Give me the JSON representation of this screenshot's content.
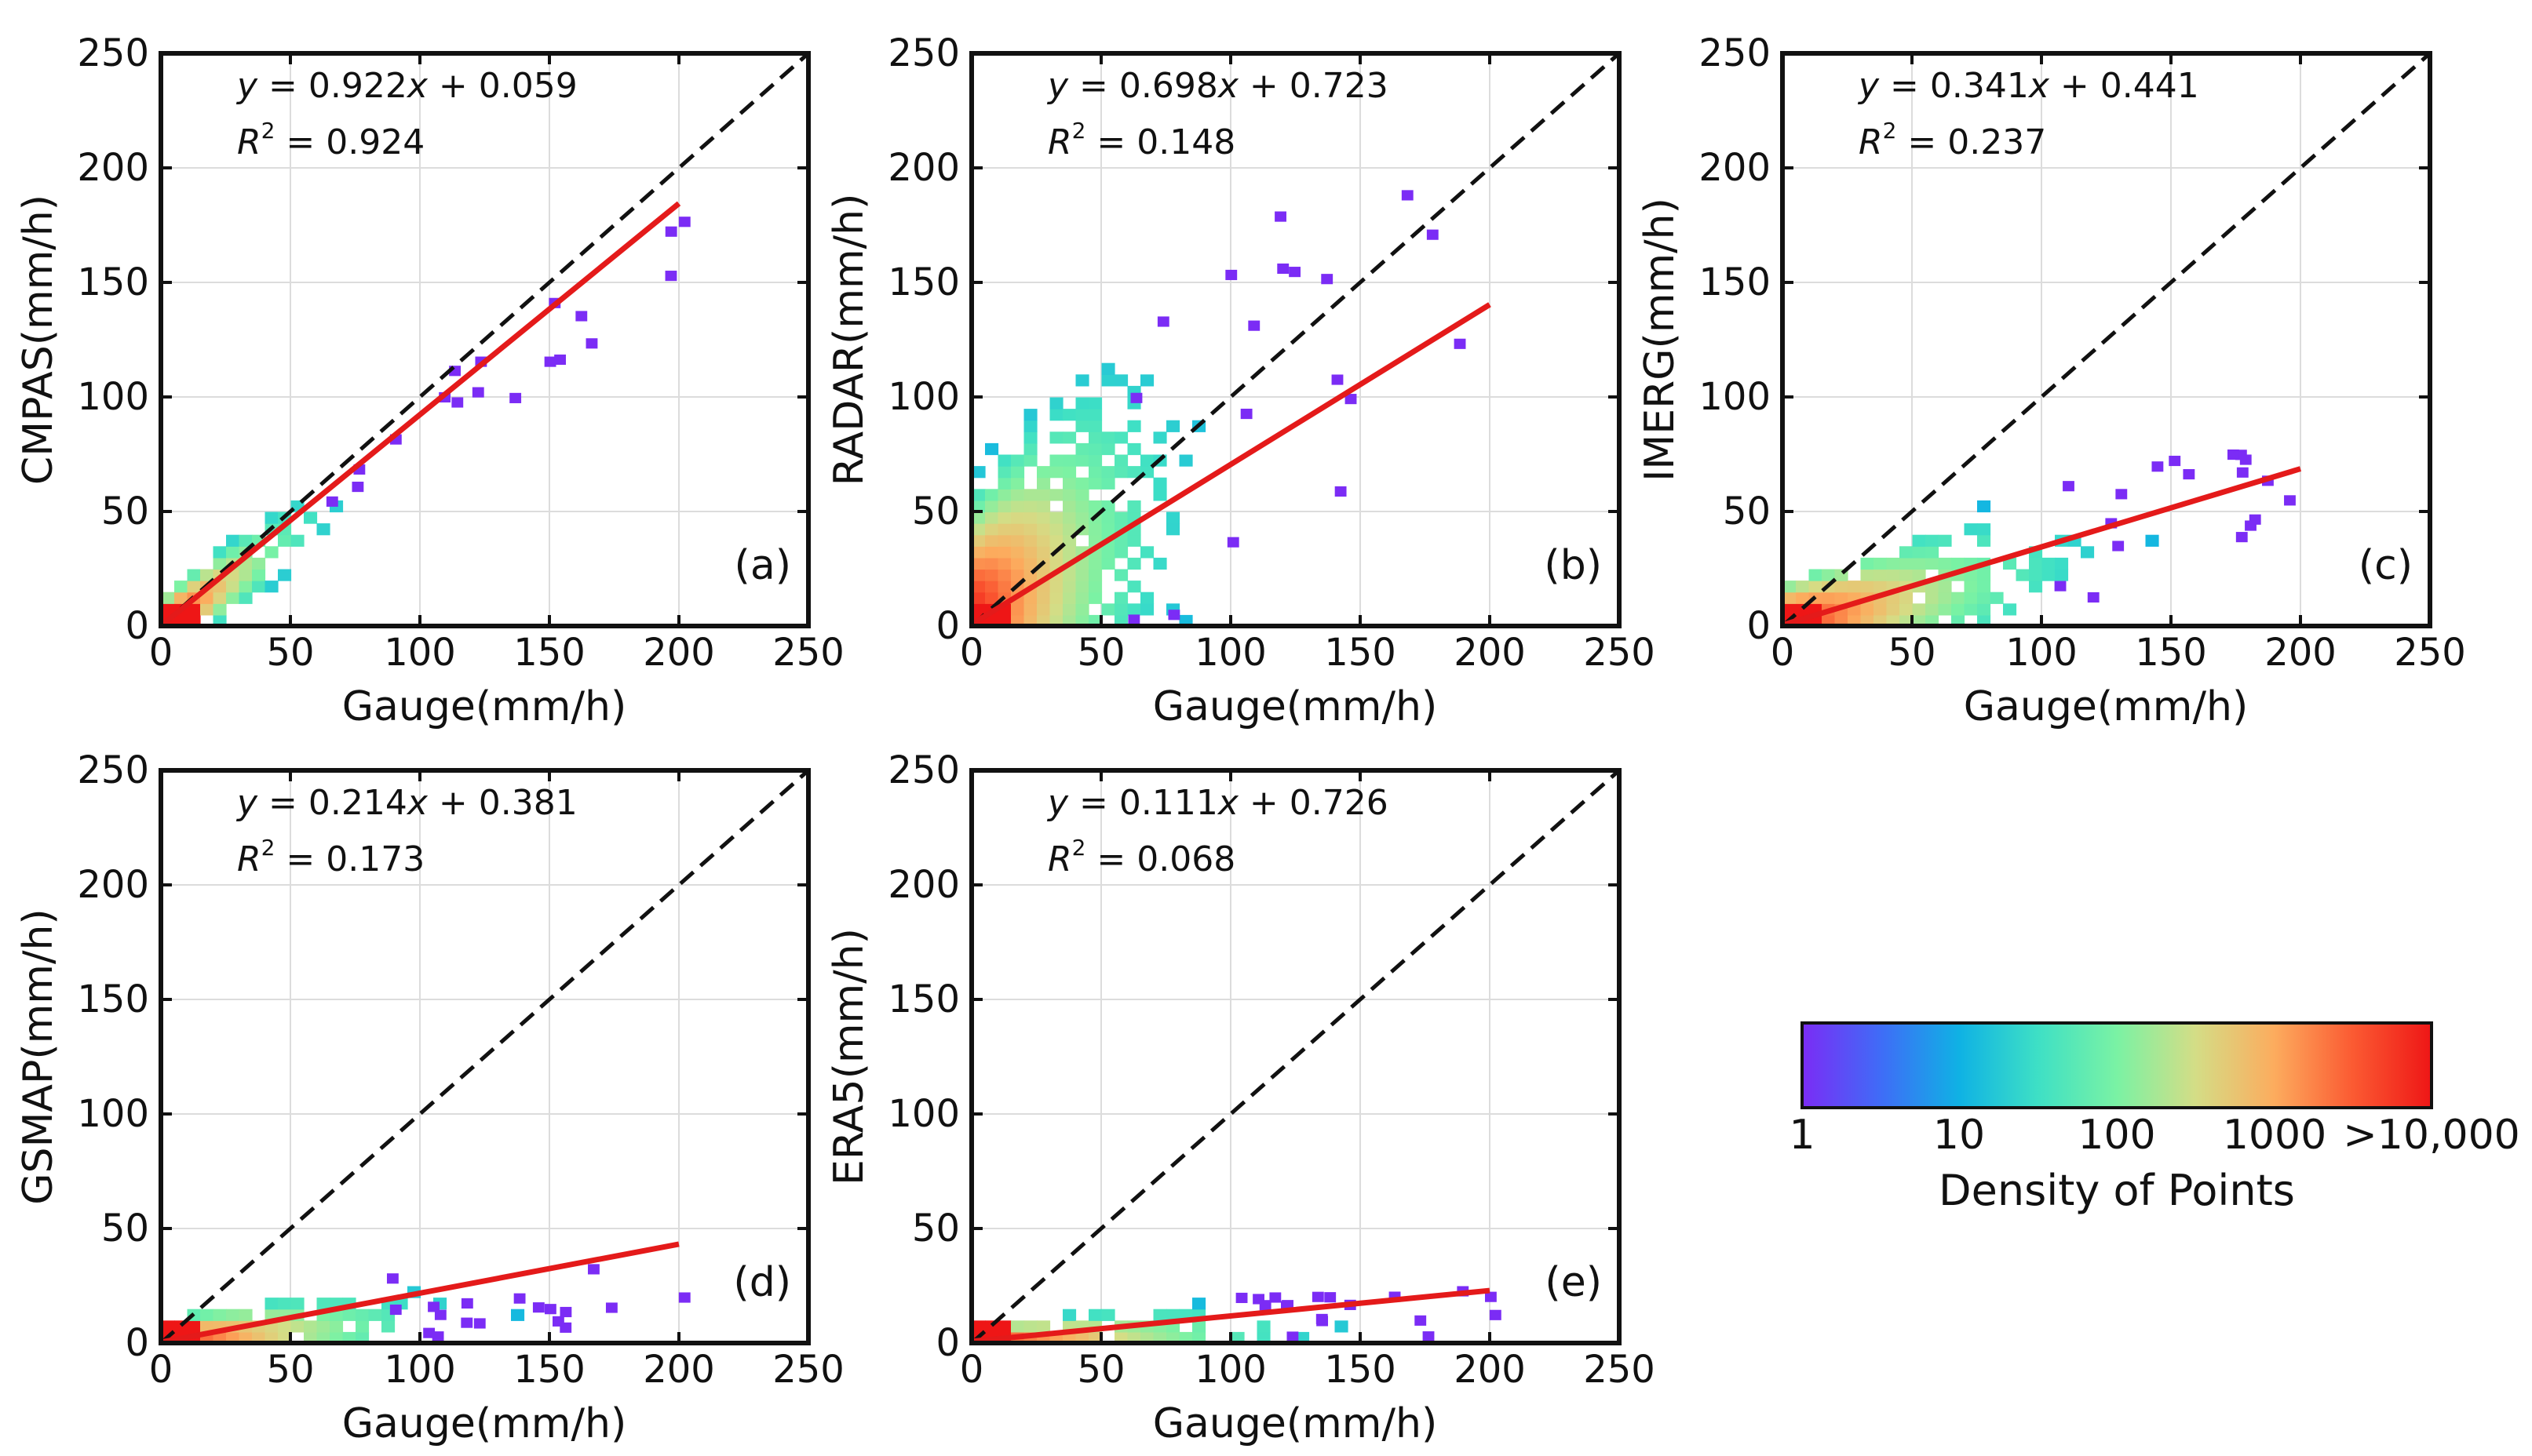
{
  "figure": {
    "colorbar": {
      "label": "Density of Points",
      "ticks": [
        "1",
        "10",
        "100",
        "1000",
        ">10,000"
      ],
      "colors": [
        "#7b2cf5",
        "#3f6cf7",
        "#0fb2e4",
        "#3ee0c5",
        "#7af2a4",
        "#d4dd86",
        "#fcac5e",
        "#fb5a32",
        "#ee1616"
      ]
    },
    "line_colors": {
      "fit": "#e41a1a",
      "one_to_one": "#111111"
    }
  },
  "chart_data": [
    {
      "type": "heatmap",
      "panel": "(a)",
      "xlabel": "Gauge(mm/h)",
      "ylabel": "CMPAS(mm/h)",
      "xlim": [
        0,
        250
      ],
      "ylim": [
        0,
        250
      ],
      "xticks": [
        "0",
        "50",
        "100",
        "150",
        "200",
        "250"
      ],
      "yticks": [
        "0",
        "50",
        "100",
        "150",
        "200",
        "250"
      ],
      "equation_prefix": "y = ",
      "slope": "0.922",
      "equation_mid": "x + ",
      "intercept": "0.059",
      "r2_prefix": "R",
      "r2_sup": "2",
      "r2_suffix": " = 0.924",
      "fit": {
        "slope": 0.922,
        "intercept": 0.059,
        "x_range": [
          0,
          200
        ]
      },
      "one_to_one": true,
      "density": {
        "reach": 100,
        "spread": 14,
        "bulk_slope": 0.82,
        "tail_x": 200
      }
    },
    {
      "type": "heatmap",
      "panel": "(b)",
      "xlabel": "Gauge(mm/h)",
      "ylabel": "RADAR(mm/h)",
      "xlim": [
        0,
        250
      ],
      "ylim": [
        0,
        250
      ],
      "xticks": [
        "0",
        "50",
        "100",
        "150",
        "200",
        "250"
      ],
      "yticks": [
        "0",
        "50",
        "100",
        "150",
        "200",
        "250"
      ],
      "equation_prefix": "y = ",
      "slope": "0.698",
      "equation_mid": "x + ",
      "intercept": "0.723",
      "r2_prefix": "R",
      "r2_sup": "2",
      "r2_suffix": " = 0.148",
      "fit": {
        "slope": 0.698,
        "intercept": 0.723,
        "x_range": [
          0,
          200
        ]
      },
      "one_to_one": true,
      "density": {
        "reach": 100,
        "spread": 60,
        "bulk_slope": 0.9,
        "tail_x": 200
      }
    },
    {
      "type": "heatmap",
      "panel": "(c)",
      "xlabel": "Gauge(mm/h)",
      "ylabel": "IMERG(mm/h)",
      "xlim": [
        0,
        250
      ],
      "ylim": [
        0,
        250
      ],
      "xticks": [
        "0",
        "50",
        "100",
        "150",
        "200",
        "250"
      ],
      "yticks": [
        "0",
        "50",
        "100",
        "150",
        "200",
        "250"
      ],
      "equation_prefix": "y = ",
      "slope": "0.341",
      "equation_mid": "x + ",
      "intercept": "0.441",
      "r2_prefix": "R",
      "r2_sup": "2",
      "r2_suffix": " = 0.237",
      "fit": {
        "slope": 0.341,
        "intercept": 0.441,
        "x_range": [
          0,
          200
        ]
      },
      "one_to_one": true,
      "density": {
        "reach": 150,
        "spread": 22,
        "bulk_slope": 0.3,
        "tail_x": 200
      }
    },
    {
      "type": "heatmap",
      "panel": "(d)",
      "xlabel": "Gauge(mm/h)",
      "ylabel": "GSMAP(mm/h)",
      "xlim": [
        0,
        250
      ],
      "ylim": [
        0,
        250
      ],
      "xticks": [
        "0",
        "50",
        "100",
        "150",
        "200",
        "250"
      ],
      "yticks": [
        "0",
        "50",
        "100",
        "150",
        "200",
        "250"
      ],
      "equation_prefix": "y = ",
      "slope": "0.214",
      "equation_mid": "x + ",
      "intercept": "0.381",
      "r2_prefix": "R",
      "r2_sup": "2",
      "r2_suffix": " = 0.173",
      "fit": {
        "slope": 0.214,
        "intercept": 0.381,
        "x_range": [
          0,
          200
        ]
      },
      "one_to_one": true,
      "density": {
        "reach": 140,
        "spread": 12,
        "bulk_slope": 0.12,
        "tail_x": 200
      }
    },
    {
      "type": "heatmap",
      "panel": "(e)",
      "xlabel": "Gauge(mm/h)",
      "ylabel": "ERA5(mm/h)",
      "xlim": [
        0,
        250
      ],
      "ylim": [
        0,
        250
      ],
      "xticks": [
        "0",
        "50",
        "100",
        "150",
        "200",
        "250"
      ],
      "yticks": [
        "0",
        "50",
        "100",
        "150",
        "200",
        "250"
      ],
      "equation_prefix": "y = ",
      "slope": "0.111",
      "equation_mid": "x + ",
      "intercept": "0.726",
      "r2_prefix": "R",
      "r2_sup": "2",
      "r2_suffix": " = 0.068",
      "fit": {
        "slope": 0.111,
        "intercept": 0.726,
        "x_range": [
          0,
          200
        ]
      },
      "one_to_one": true,
      "density": {
        "reach": 160,
        "spread": 9,
        "bulk_slope": 0.06,
        "tail_x": 200
      }
    }
  ]
}
